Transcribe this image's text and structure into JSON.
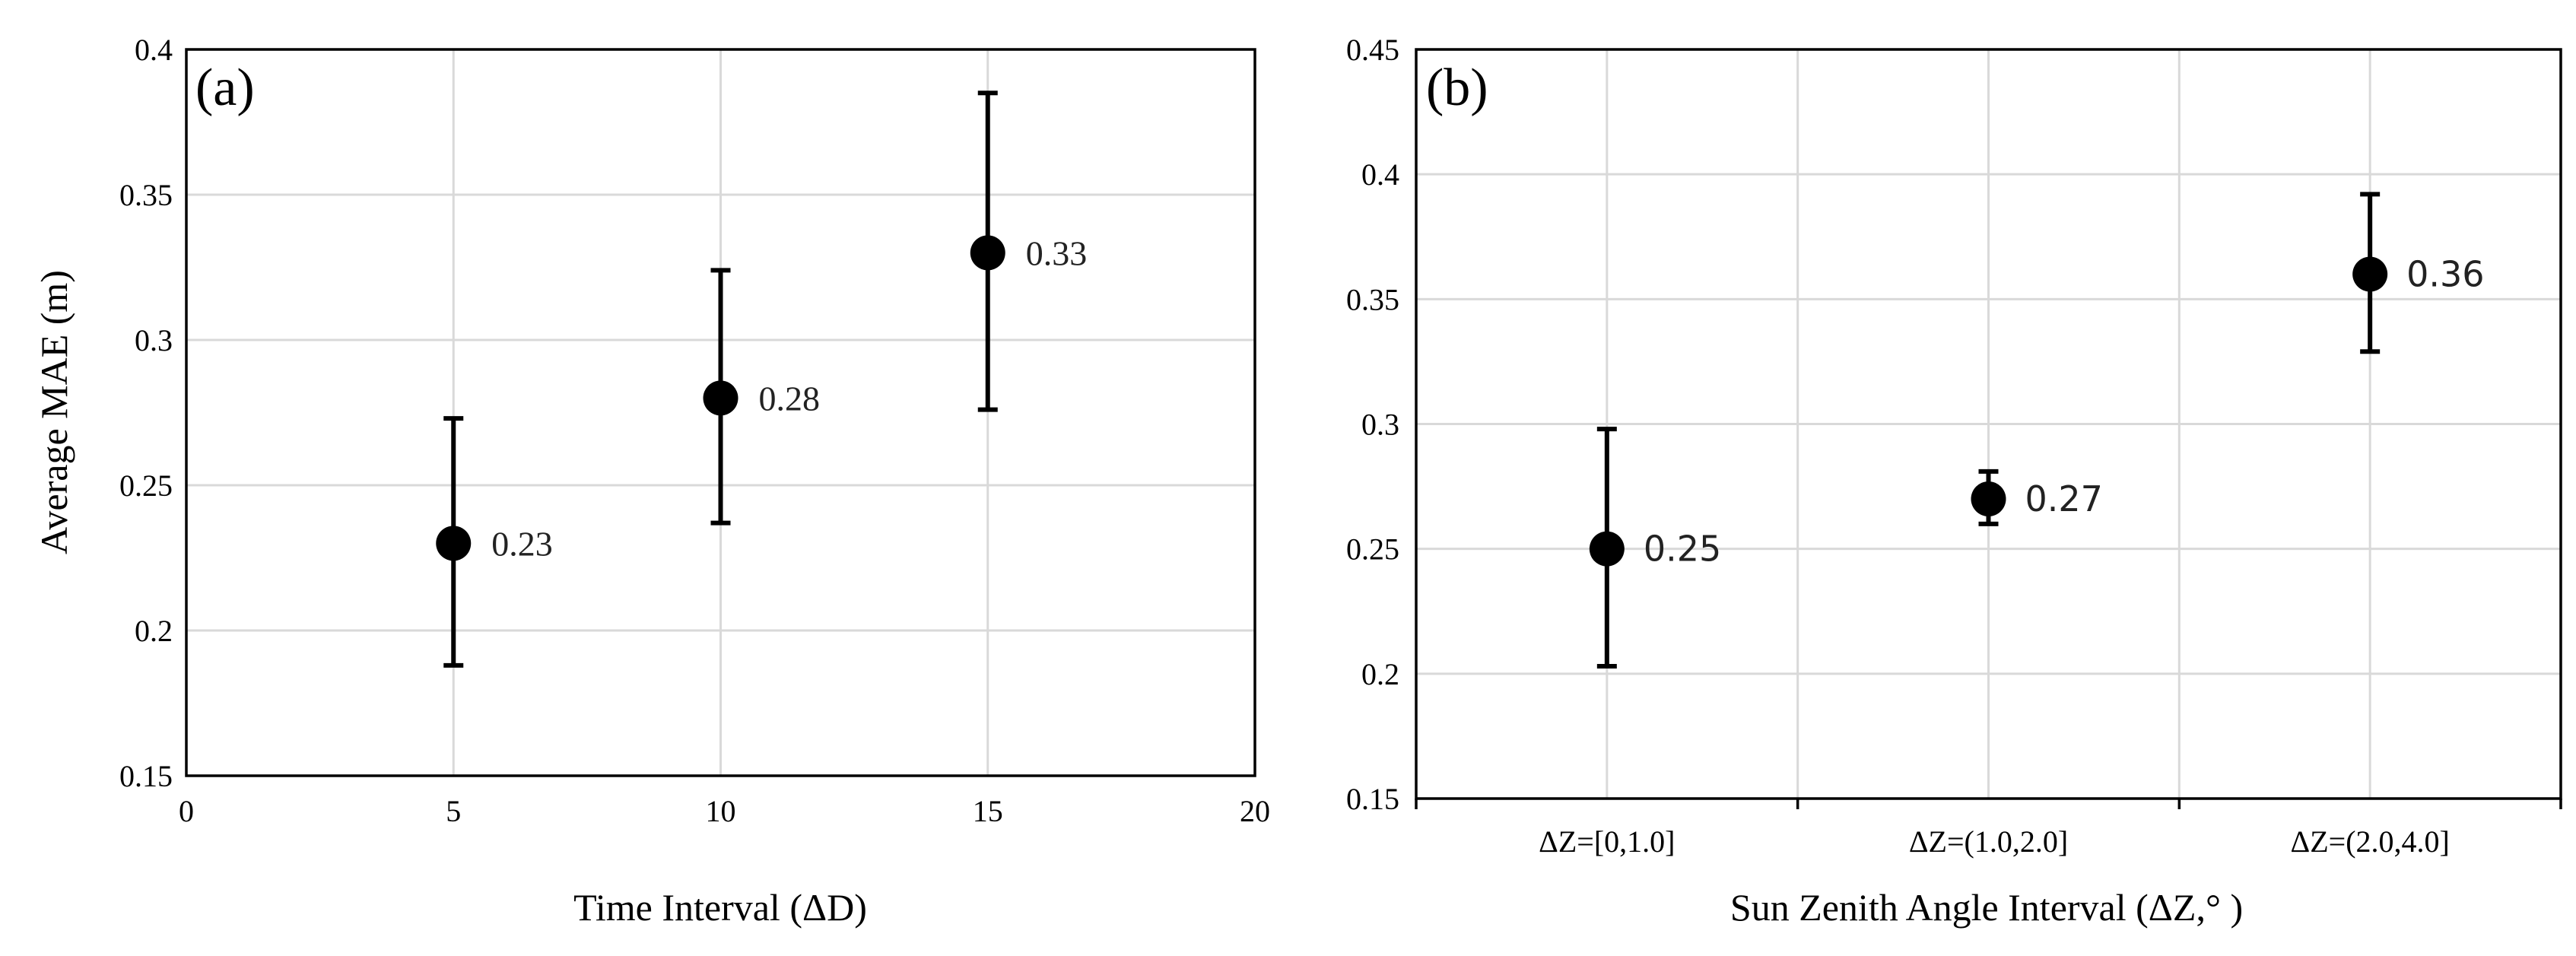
{
  "chart_data": [
    {
      "type": "scatter",
      "panel_label": "(a)",
      "xlabel": "Time Interval (ΔD)",
      "ylabel": "Average MAE (m)",
      "xlim": [
        0,
        20
      ],
      "ylim": [
        0.15,
        0.4
      ],
      "xticks": [
        0,
        5,
        10,
        15,
        20
      ],
      "yticks": [
        0.15,
        0.2,
        0.25,
        0.3,
        0.35,
        0.4
      ],
      "ytick_labels": [
        "0.15",
        "0.2",
        "0.25",
        "0.3",
        "0.35",
        "0.4"
      ],
      "grid": true,
      "points": [
        {
          "x": 5,
          "y": 0.23,
          "err_low": 0.188,
          "err_high": 0.273,
          "label": "0.23"
        },
        {
          "x": 10,
          "y": 0.28,
          "err_low": 0.237,
          "err_high": 0.324,
          "label": "0.28"
        },
        {
          "x": 15,
          "y": 0.33,
          "err_low": 0.276,
          "err_high": 0.385,
          "label": "0.33"
        }
      ]
    },
    {
      "type": "scatter",
      "panel_label": "(b)",
      "xlabel": "Sun Zenith Angle Interval (ΔZ,° )",
      "ylabel": "",
      "categories": [
        "ΔZ=[0,1.0]",
        "ΔZ=(1.0,2.0]",
        "ΔZ=(2.0,4.0]"
      ],
      "ylim": [
        0.15,
        0.45
      ],
      "yticks": [
        0.15,
        0.2,
        0.25,
        0.3,
        0.35,
        0.4,
        0.45
      ],
      "ytick_labels": [
        "0.15",
        "0.2",
        "0.25",
        "0.3",
        "0.35",
        "0.4",
        "0.45"
      ],
      "grid": true,
      "points": [
        {
          "y": 0.25,
          "err_low": 0.203,
          "err_high": 0.298,
          "label": "0.25"
        },
        {
          "y": 0.27,
          "err_low": 0.26,
          "err_high": 0.281,
          "label": "0.27"
        },
        {
          "y": 0.36,
          "err_low": 0.329,
          "err_high": 0.392,
          "label": "0.36"
        }
      ]
    }
  ]
}
